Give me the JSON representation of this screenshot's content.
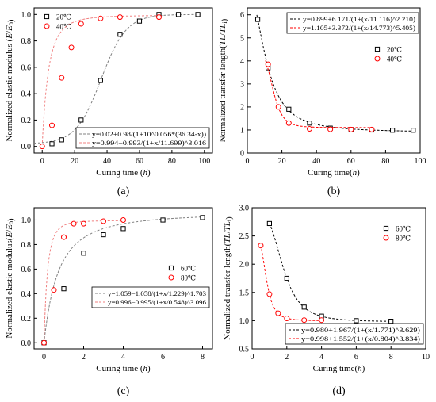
{
  "chart_data": [
    {
      "id": "a",
      "type": "scatter",
      "caption": "(a)",
      "xlabel": "Curing time (h)",
      "ylabel": "Normalized elastic modulus (E/E0)",
      "xlim": [
        -5,
        105
      ],
      "ylim": [
        -0.05,
        1.05
      ],
      "xticks": [
        0,
        20,
        40,
        60,
        80,
        100
      ],
      "yticks": [
        0.0,
        0.2,
        0.4,
        0.6,
        0.8,
        1.0
      ],
      "ytick_decimals": 1,
      "legend_position": "top-left",
      "series": [
        {
          "name": "20℃",
          "marker": "square",
          "color": "#000000",
          "x": [
            6,
            12,
            24,
            36,
            48,
            60,
            72,
            84,
            96
          ],
          "y": [
            0.02,
            0.05,
            0.2,
            0.5,
            0.85,
            0.95,
            1.0,
            1.0,
            1.0
          ],
          "fit": {
            "equation": "y=0.02+0.98/(1+10^0.056*(36.34-x))",
            "model": "logistic",
            "params": [
              0.02,
              0.98,
              0.056,
              36.34
            ],
            "color": "#808080"
          }
        },
        {
          "name": "40℃",
          "marker": "circle",
          "color": "#ff0000",
          "x": [
            0,
            6,
            12,
            18,
            24,
            36,
            48,
            72
          ],
          "y": [
            0.0,
            0.16,
            0.52,
            0.75,
            0.93,
            0.97,
            0.98,
            0.98
          ],
          "fit": {
            "equation": "y=0.994−0.993/(1+x/11.699)^3.016",
            "model": "power",
            "params": [
              0.994,
              0.993,
              11.699,
              3.016
            ],
            "color": "#f08080"
          }
        }
      ]
    },
    {
      "id": "b",
      "type": "scatter",
      "caption": "(b)",
      "xlabel": "Curing time(h)",
      "ylabel": "Normalized transfer length(TL/TLi)",
      "xlim": [
        0,
        100
      ],
      "ylim": [
        0,
        6.3
      ],
      "xticks": [
        0,
        20,
        40,
        60,
        80,
        100
      ],
      "yticks": [
        0,
        1,
        2,
        3,
        4,
        5,
        6
      ],
      "ytick_decimals": 0,
      "legend_position": "right",
      "series": [
        {
          "name": "20℃",
          "marker": "square",
          "color": "#000000",
          "x": [
            6,
            12,
            24,
            36,
            48,
            60,
            72,
            84,
            96
          ],
          "y": [
            5.8,
            3.7,
            1.9,
            1.3,
            1.08,
            1.02,
            1.0,
            0.99,
            0.99
          ],
          "fit": {
            "equation": "y=0.899+6.171/(1+(x/11.116)^2.210)",
            "model": "hill",
            "params": [
              0.899,
              6.171,
              11.116,
              2.21
            ],
            "color": "#000000"
          }
        },
        {
          "name": "40℃",
          "marker": "circle",
          "color": "#ff0000",
          "x": [
            12,
            18,
            24,
            36,
            48,
            60,
            72
          ],
          "y": [
            3.85,
            2.0,
            1.3,
            1.05,
            1.03,
            1.02,
            1.02
          ],
          "fit": {
            "equation": "y=1.105+3.372/(1+(x/14.773)^5.405)",
            "model": "hill",
            "params": [
              1.105,
              3.372,
              14.773,
              5.405
            ],
            "color": "#ff0000"
          }
        }
      ]
    },
    {
      "id": "c",
      "type": "scatter",
      "caption": "(c)",
      "xlabel": "Curing time (h)",
      "ylabel": "Normalized elastic modulus(E/E0)",
      "xlim": [
        -0.5,
        8.5
      ],
      "ylim": [
        -0.05,
        1.1
      ],
      "xticks": [
        0,
        2,
        4,
        6,
        8
      ],
      "yticks": [
        0.0,
        0.2,
        0.4,
        0.6,
        0.8,
        1.0
      ],
      "ytick_decimals": 1,
      "legend_position": "bottom-right",
      "series": [
        {
          "name": "60℃",
          "marker": "square",
          "color": "#000000",
          "x": [
            0,
            1,
            2,
            3,
            4,
            6,
            8
          ],
          "y": [
            0.0,
            0.44,
            0.73,
            0.88,
            0.93,
            1.0,
            1.02
          ],
          "fit": {
            "equation": "y=1.059−1.058/(1+x/1.229)^1.703",
            "model": "power",
            "params": [
              1.059,
              1.058,
              1.229,
              1.703
            ],
            "color": "#808080"
          }
        },
        {
          "name": "80℃",
          "marker": "circle",
          "color": "#ff0000",
          "x": [
            0,
            0.5,
            1,
            1.5,
            2,
            3,
            4
          ],
          "y": [
            0.0,
            0.43,
            0.86,
            0.97,
            0.97,
            0.99,
            1.0
          ],
          "fit": {
            "equation": "y=0.996−0.995/(1+x/0.548)^3.096",
            "model": "power",
            "params": [
              0.996,
              0.995,
              0.548,
              3.096
            ],
            "color": "#f08080"
          }
        }
      ]
    },
    {
      "id": "d",
      "type": "scatter",
      "caption": "(d)",
      "xlabel": "Curing time(h)",
      "ylabel": "Normalized transfer length(TL/TLi)",
      "xlim": [
        0,
        10
      ],
      "ylim": [
        0.5,
        3.0
      ],
      "xticks": [
        0,
        2,
        4,
        6,
        8,
        10
      ],
      "yticks": [
        0.5,
        1.0,
        1.5,
        2.0,
        2.5,
        3.0
      ],
      "ytick_decimals": 1,
      "legend_position": "top-right",
      "series": [
        {
          "name": "60℃",
          "marker": "square",
          "color": "#000000",
          "x": [
            1,
            2,
            3,
            4,
            6,
            8
          ],
          "y": [
            2.72,
            1.75,
            1.24,
            1.08,
            1.0,
            0.99
          ],
          "fit": {
            "equation": "y=0.980+1.967/(1+(x/1.771)^3.629)",
            "model": "hill",
            "params": [
              0.98,
              1.967,
              1.771,
              3.629
            ],
            "color": "#000000"
          }
        },
        {
          "name": "80℃",
          "marker": "circle",
          "color": "#ff0000",
          "x": [
            0.5,
            1,
            1.5,
            2,
            3,
            4
          ],
          "y": [
            2.33,
            1.47,
            1.13,
            1.04,
            1.01,
            1.01
          ],
          "fit": {
            "equation": "y=0.998+1.552/(1+(x/0.804)^3.834)",
            "model": "hill",
            "params": [
              0.998,
              1.552,
              0.804,
              3.834
            ],
            "color": "#ff0000"
          }
        }
      ]
    }
  ]
}
